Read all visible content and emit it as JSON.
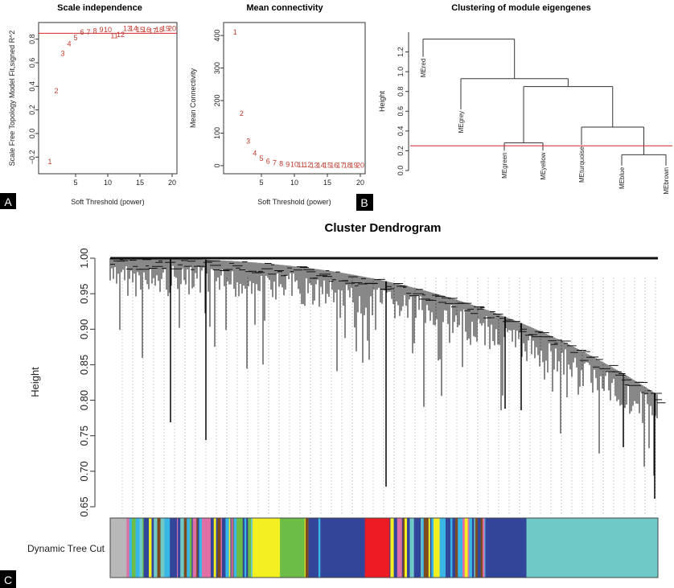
{
  "chart_data": [
    {
      "panel": "A",
      "type": "scatter",
      "title": "Scale independence",
      "xlabel": "Soft Threshold (power)",
      "ylabel": "Scale Free Topology Model Fit,signed R^2",
      "xlim": [
        0,
        20
      ],
      "ylim": [
        -0.3,
        0.9
      ],
      "x_ticks": [
        5,
        10,
        15,
        20
      ],
      "y_ticks": [
        -0.2,
        0.0,
        0.2,
        0.4,
        0.6,
        0.8
      ],
      "threshold_line": 0.85,
      "threshold_color": "#d62728",
      "point_color": "#c0392b",
      "points": [
        {
          "x": 1,
          "y": -0.24,
          "label": "1"
        },
        {
          "x": 2,
          "y": 0.36,
          "label": "2"
        },
        {
          "x": 3,
          "y": 0.68,
          "label": "3"
        },
        {
          "x": 4,
          "y": 0.76,
          "label": "4"
        },
        {
          "x": 5,
          "y": 0.81,
          "label": "5"
        },
        {
          "x": 6,
          "y": 0.86,
          "label": "6"
        },
        {
          "x": 7,
          "y": 0.86,
          "label": "7"
        },
        {
          "x": 8,
          "y": 0.87,
          "label": "8"
        },
        {
          "x": 9,
          "y": 0.88,
          "label": "9"
        },
        {
          "x": 10,
          "y": 0.88,
          "label": "10"
        },
        {
          "x": 11,
          "y": 0.83,
          "label": "11"
        },
        {
          "x": 12,
          "y": 0.84,
          "label": "12"
        },
        {
          "x": 13,
          "y": 0.89,
          "label": "13"
        },
        {
          "x": 14,
          "y": 0.89,
          "label": "14"
        },
        {
          "x": 15,
          "y": 0.88,
          "label": "15"
        },
        {
          "x": 16,
          "y": 0.88,
          "label": "16"
        },
        {
          "x": 17,
          "y": 0.87,
          "label": "17"
        },
        {
          "x": 18,
          "y": 0.88,
          "label": "18"
        },
        {
          "x": 19,
          "y": 0.89,
          "label": "19"
        },
        {
          "x": 20,
          "y": 0.89,
          "label": "20"
        }
      ]
    },
    {
      "panel": "B",
      "type": "scatter",
      "title": "Mean connectivity",
      "xlabel": "Soft Threshold (power)",
      "ylabel": "Mean Connectivity",
      "xlim": [
        0,
        20
      ],
      "ylim": [
        -15,
        430
      ],
      "x_ticks": [
        5,
        10,
        15,
        20
      ],
      "y_ticks": [
        0,
        100,
        200,
        300,
        400
      ],
      "point_color": "#c0392b",
      "points": [
        {
          "x": 1,
          "y": 410,
          "label": "1"
        },
        {
          "x": 2,
          "y": 160,
          "label": "2"
        },
        {
          "x": 3,
          "y": 75,
          "label": "3"
        },
        {
          "x": 4,
          "y": 38,
          "label": "4"
        },
        {
          "x": 5,
          "y": 22,
          "label": "5"
        },
        {
          "x": 6,
          "y": 14,
          "label": "6"
        },
        {
          "x": 7,
          "y": 9,
          "label": "7"
        },
        {
          "x": 8,
          "y": 6,
          "label": "8"
        },
        {
          "x": 9,
          "y": 4,
          "label": "9"
        },
        {
          "x": 10,
          "y": 3,
          "label": "10"
        },
        {
          "x": 11,
          "y": 2,
          "label": "11"
        },
        {
          "x": 12,
          "y": 2,
          "label": "12"
        },
        {
          "x": 13,
          "y": 1,
          "label": "13"
        },
        {
          "x": 14,
          "y": 1,
          "label": "14"
        },
        {
          "x": 15,
          "y": 1,
          "label": "15"
        },
        {
          "x": 16,
          "y": 1,
          "label": "16"
        },
        {
          "x": 17,
          "y": 1,
          "label": "17"
        },
        {
          "x": 18,
          "y": 1,
          "label": "18"
        },
        {
          "x": 19,
          "y": 1,
          "label": "19"
        },
        {
          "x": 20,
          "y": 1,
          "label": "20"
        }
      ]
    },
    {
      "panel": "top-right",
      "type": "dendrogram",
      "title": "Clustering of module eigengenes",
      "ylabel": "Height",
      "ylim": [
        0,
        1.4
      ],
      "y_ticks": [
        0.0,
        0.2,
        0.4,
        0.6,
        0.8,
        1.0,
        1.2
      ],
      "cut_height": 0.25,
      "cut_color": "#d62728",
      "leaves": [
        {
          "name": "MEred",
          "height": 1.15
        },
        {
          "name": "MEgrey",
          "height": 0.62
        },
        {
          "name": "MEgreen",
          "height": 0.2
        },
        {
          "name": "MEyellow",
          "height": 0.2
        },
        {
          "name": "MEturquoise",
          "height": 0.26
        },
        {
          "name": "MEblue",
          "height": 0.05
        },
        {
          "name": "MEbrown",
          "height": 0.05
        }
      ],
      "merges": [
        {
          "members": [
            "MEgreen",
            "MEyellow"
          ],
          "height": 0.28
        },
        {
          "members": [
            "MEblue",
            "MEbrown"
          ],
          "height": 0.16
        },
        {
          "members": [
            "MEturquoise",
            "MEblue",
            "MEbrown"
          ],
          "height": 0.44
        },
        {
          "members": [
            "MEgreen",
            "MEyellow",
            "MEturquoise",
            "MEblue",
            "MEbrown"
          ],
          "height": 0.85
        },
        {
          "members": [
            "MEgrey",
            "MEgreen",
            "MEyellow",
            "MEturquoise",
            "MEblue",
            "MEbrown"
          ],
          "height": 0.93
        },
        {
          "members": [
            "all"
          ],
          "height": 1.33
        }
      ]
    },
    {
      "panel": "C",
      "type": "dendrogram",
      "title": "Cluster Dendrogram",
      "ylabel": "Height",
      "ylim": [
        0.65,
        1.0
      ],
      "y_ticks": [
        0.65,
        0.7,
        0.75,
        0.8,
        0.85,
        0.9,
        0.95,
        1.0
      ],
      "colorbar_label": "Dynamic Tree Cut",
      "module_colors": {
        "grey": "#b8b8b8",
        "turquoise": "#6ec9c7",
        "blue": "#31459b",
        "cyan": "#38b6e6",
        "brown": "#7e4b21",
        "yellow": "#f3ef21",
        "green": "#6cbd45",
        "red": "#ed1c24",
        "pink": "#e06fa5"
      },
      "color_segments": [
        {
          "module": "grey",
          "fraction": 0.03
        },
        {
          "module": "mixed",
          "fraction": 0.23
        },
        {
          "module": "yellow",
          "fraction": 0.05
        },
        {
          "module": "green",
          "fraction": 0.045
        },
        {
          "module": "mixed",
          "fraction": 0.03
        },
        {
          "module": "blue",
          "fraction": 0.08
        },
        {
          "module": "red",
          "fraction": 0.045
        },
        {
          "module": "mixed",
          "fraction": 0.175
        },
        {
          "module": "blue",
          "fraction": 0.075
        },
        {
          "module": "turquoise",
          "fraction": 0.24
        }
      ]
    }
  ],
  "panel_labels": [
    "A",
    "B",
    "C"
  ]
}
